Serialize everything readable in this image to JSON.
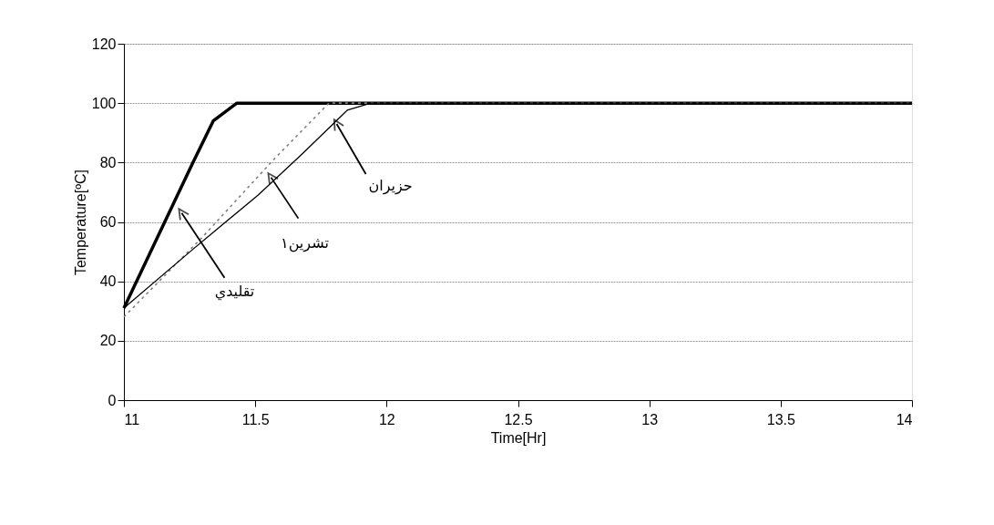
{
  "chart_data": {
    "type": "line",
    "xlabel": "Time[Hr]",
    "ylabel": "Temperature[ºC]",
    "xlim": [
      11,
      14
    ],
    "xticks": [
      11,
      11.5,
      12,
      12.5,
      13,
      13.5,
      14
    ],
    "ylim": [
      0,
      120
    ],
    "yticks": [
      0,
      20,
      40,
      60,
      80,
      100,
      120
    ],
    "grid": "y",
    "marker": "none",
    "series": [
      {
        "color": "#000000",
        "line_style": "solid",
        "x": [
          11,
          11.26,
          11.34,
          11.43,
          14
        ],
        "values": [
          31,
          79.5,
          94,
          100,
          100
        ]
      },
      {
        "color": "#808080",
        "line_style": "dotted",
        "x": [
          11,
          11.3,
          11.57,
          11.78,
          14
        ],
        "values": [
          28,
          55,
          81,
          100,
          100
        ]
      },
      {
        "color": "#000000",
        "line_style": "solid",
        "x": [
          11,
          11.26,
          11.51,
          11.68,
          11.85,
          11.94,
          14
        ],
        "values": [
          31,
          50.6,
          69,
          83,
          97.6,
          100,
          100
        ]
      }
    ],
    "annotations": [
      {
        "text": "تقليدي",
        "x": 11.22,
        "y": 63
      },
      {
        "text": "تشرين١",
        "x": 11.56,
        "y": 75
      },
      {
        "text": "حزيران",
        "x": 11.81,
        "y": 93
      }
    ]
  }
}
